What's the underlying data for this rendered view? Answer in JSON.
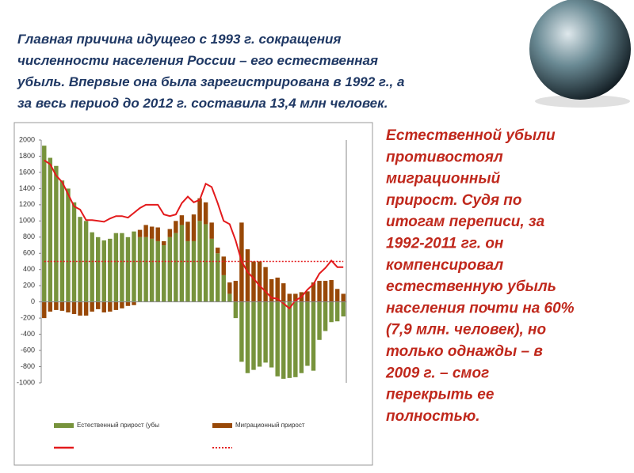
{
  "header": {
    "title": [
      "Главная причина идущего с 1993 г. сокращения",
      "численности населения России – его естественная",
      "убыль.  Впервые она была зарегистрирована в 1992 г., а",
      "за весь период до 2012 г. составила 13,4 млн человек."
    ]
  },
  "side_text": [
    "Естественной убыли",
    "противостоял",
    "миграционный",
    "прирост. Судя по",
    "итогам переписи, за",
    "1992-2011 гг. он",
    "компенсировал",
    "естественную убыль",
    "населения почти на 60%",
    "(7,9 млн. человек), но",
    "только однажды – в",
    "2009 г. – смог",
    "перекрыть ее",
    "полностью."
  ],
  "chart_data": {
    "type": "bar",
    "categories": [
      null,
      null,
      null,
      null,
      null,
      null,
      null,
      null,
      null,
      null,
      null,
      null,
      null,
      null,
      null,
      null,
      null,
      null,
      null,
      null,
      null,
      null,
      null,
      null,
      null,
      null,
      null,
      null,
      null,
      null,
      null,
      null,
      null,
      null,
      null,
      null,
      null,
      null,
      null,
      null,
      null,
      null,
      null,
      null,
      null,
      null,
      null,
      null,
      null,
      null,
      null
    ],
    "stacked": true,
    "series": [
      {
        "name": "Естественный прирост (убы",
        "color": "#77933c",
        "values": [
          1930,
          1780,
          1680,
          1500,
          1400,
          1230,
          1050,
          1000,
          860,
          800,
          760,
          780,
          850,
          850,
          800,
          870,
          800,
          800,
          780,
          750,
          700,
          800,
          850,
          950,
          750,
          750,
          1000,
          960,
          780,
          600,
          330,
          100,
          -200,
          -740,
          -880,
          -840,
          -800,
          -750,
          -810,
          -920,
          -950,
          -940,
          -930,
          -880,
          -790,
          -850,
          -470,
          -360,
          -250,
          -240,
          -180
        ]
      },
      {
        "name": "Миграционный прирост",
        "color": "#984807",
        "values": [
          -200,
          -120,
          -100,
          -110,
          -130,
          -150,
          -170,
          -170,
          -120,
          -90,
          -130,
          -120,
          -100,
          -80,
          -50,
          -40,
          90,
          150,
          150,
          170,
          50,
          100,
          150,
          120,
          240,
          330,
          280,
          270,
          200,
          70,
          230,
          140,
          260,
          980,
          650,
          500,
          500,
          430,
          280,
          300,
          230,
          100,
          100,
          120,
          130,
          240,
          260,
          260,
          270,
          160,
          100
        ]
      },
      {
        "type": "line",
        "color": "#e31a1c",
        "values": [
          1750,
          1700,
          1560,
          1480,
          1330,
          1180,
          1140,
          1010,
          1010,
          1000,
          990,
          1030,
          1060,
          1060,
          1040,
          1100,
          1160,
          1200,
          1200,
          1200,
          1080,
          1060,
          1080,
          1220,
          1300,
          1230,
          1260,
          1460,
          1420,
          1220,
          1000,
          960,
          760,
          500,
          370,
          290,
          200,
          130,
          50,
          40,
          -20,
          -80,
          20,
          60,
          150,
          220,
          350,
          420,
          510,
          430,
          430
        ]
      }
    ],
    "reference_line": {
      "value": 500,
      "color": "#e31a1c",
      "style": "dotted"
    },
    "ylim": [
      -1000,
      2000
    ],
    "yticks": [
      -1000,
      -800,
      -600,
      -400,
      -200,
      0,
      200,
      400,
      600,
      800,
      1000,
      1200,
      1400,
      1600,
      1800,
      2000
    ],
    "grid": false
  }
}
